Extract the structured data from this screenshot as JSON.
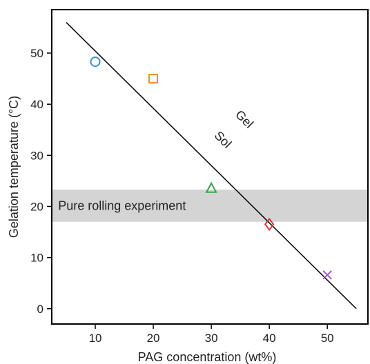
{
  "chart_data": {
    "type": "scatter",
    "xlabel": "PAG concentration (wt%)",
    "ylabel": "Gelation temperature (°C)",
    "xlim": [
      2.5,
      57
    ],
    "ylim": [
      -3,
      58.5
    ],
    "xticks": [
      10,
      20,
      30,
      40,
      50
    ],
    "yticks": [
      0,
      10,
      20,
      30,
      40,
      50
    ],
    "grid": false,
    "points": [
      {
        "x": 10,
        "y": 48.3,
        "marker": "circle",
        "color": "#3b8fd0"
      },
      {
        "x": 20,
        "y": 45.0,
        "marker": "square",
        "color": "#f08a24"
      },
      {
        "x": 30,
        "y": 23.6,
        "marker": "triangle",
        "color": "#3aa34a"
      },
      {
        "x": 40,
        "y": 16.5,
        "marker": "diamond",
        "color": "#d93535"
      },
      {
        "x": 50,
        "y": 6.6,
        "marker": "cross",
        "color": "#9b59c6"
      }
    ],
    "boundary_line": {
      "x": [
        5,
        55
      ],
      "y": [
        56.0,
        0.0
      ],
      "color": "#000000"
    },
    "band": {
      "y": [
        17.0,
        23.3
      ],
      "label": "Pure rolling experiment",
      "color": "#d4d4d4"
    },
    "annotations": [
      {
        "text": "Gel",
        "x": 35.2,
        "y": 36.5
      },
      {
        "text": "Sol",
        "x": 31.5,
        "y": 32.5
      }
    ]
  }
}
